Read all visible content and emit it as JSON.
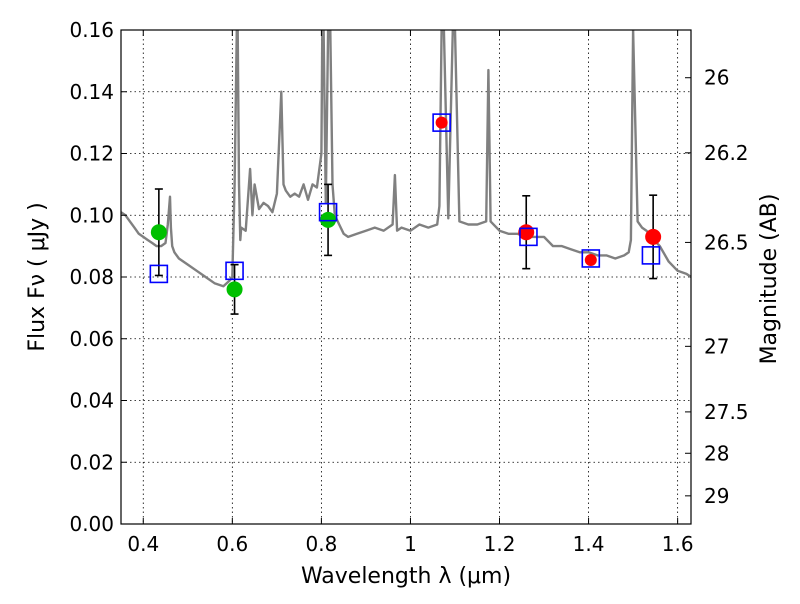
{
  "chart_data": {
    "type": "scatter",
    "xlabel": "Wavelength  λ (μm)",
    "ylabel": "Flux  Fν  ( μJy )",
    "y2label": "Magnitude (AB)",
    "xlim": [
      0.35,
      1.63
    ],
    "ylim": [
      0.0,
      0.16
    ],
    "x_ticks": [
      "0.4",
      "0.6",
      "0.8",
      "1",
      "1.2",
      "1.4",
      "1.6"
    ],
    "y_ticks": [
      "0.00",
      "0.02",
      "0.04",
      "0.06",
      "0.08",
      "0.10",
      "0.12",
      "0.14",
      "0.16"
    ],
    "y2_ticks": [
      "26",
      "26.2",
      "26.5",
      "27",
      "27.5",
      "28",
      "29"
    ],
    "grid": true,
    "colors": {
      "spectrum": "#808080",
      "green_points": "#00c000",
      "red_points": "#ff0000",
      "model_boxes": "#0000ff",
      "error_bars": "#000000"
    },
    "series": [
      {
        "kind": "line",
        "color": "#808080",
        "x": [
          0.35,
          0.36,
          0.37,
          0.38,
          0.39,
          0.4,
          0.41,
          0.42,
          0.43,
          0.44,
          0.45,
          0.455,
          0.46,
          0.462,
          0.465,
          0.47,
          0.48,
          0.5,
          0.52,
          0.54,
          0.56,
          0.58,
          0.595,
          0.6,
          0.605,
          0.61,
          0.612,
          0.615,
          0.618,
          0.62,
          0.63,
          0.64,
          0.645,
          0.65,
          0.66,
          0.67,
          0.68,
          0.69,
          0.7,
          0.71,
          0.715,
          0.72,
          0.73,
          0.74,
          0.75,
          0.76,
          0.77,
          0.78,
          0.79,
          0.8,
          0.802,
          0.805,
          0.81,
          0.815,
          0.82,
          0.825,
          0.83,
          0.84,
          0.85,
          0.86,
          0.88,
          0.9,
          0.92,
          0.94,
          0.96,
          0.965,
          0.97,
          0.98,
          1.0,
          1.02,
          1.04,
          1.06,
          1.065,
          1.07,
          1.075,
          1.085,
          1.095,
          1.1,
          1.11,
          1.13,
          1.15,
          1.17,
          1.175,
          1.18,
          1.2,
          1.22,
          1.24,
          1.26,
          1.28,
          1.3,
          1.32,
          1.34,
          1.36,
          1.38,
          1.4,
          1.42,
          1.44,
          1.46,
          1.48,
          1.49,
          1.495,
          1.5,
          1.51,
          1.52,
          1.53,
          1.54,
          1.56,
          1.58,
          1.6,
          1.62,
          1.63
        ],
        "y": [
          0.101,
          0.1,
          0.098,
          0.096,
          0.094,
          0.093,
          0.092,
          0.091,
          0.09,
          0.09,
          0.091,
          0.097,
          0.106,
          0.096,
          0.09,
          0.088,
          0.086,
          0.084,
          0.082,
          0.08,
          0.078,
          0.077,
          0.079,
          0.08,
          0.11,
          0.16,
          0.16,
          0.11,
          0.092,
          0.096,
          0.095,
          0.115,
          0.1,
          0.11,
          0.102,
          0.104,
          0.103,
          0.101,
          0.107,
          0.14,
          0.11,
          0.108,
          0.106,
          0.107,
          0.106,
          0.11,
          0.105,
          0.11,
          0.109,
          0.12,
          0.16,
          0.16,
          0.104,
          0.16,
          0.16,
          0.11,
          0.1,
          0.097,
          0.094,
          0.093,
          0.094,
          0.095,
          0.096,
          0.095,
          0.097,
          0.113,
          0.095,
          0.096,
          0.095,
          0.097,
          0.096,
          0.097,
          0.103,
          0.16,
          0.16,
          0.099,
          0.16,
          0.16,
          0.098,
          0.097,
          0.097,
          0.098,
          0.147,
          0.098,
          0.095,
          0.094,
          0.094,
          0.093,
          0.093,
          0.093,
          0.09,
          0.09,
          0.089,
          0.088,
          0.088,
          0.087,
          0.087,
          0.086,
          0.087,
          0.088,
          0.092,
          0.16,
          0.098,
          0.096,
          0.095,
          0.093,
          0.09,
          0.085,
          0.082,
          0.081,
          0.08
        ]
      },
      {
        "kind": "points-with-errorbars",
        "color": "#00c000",
        "x": [
          0.435,
          0.605,
          0.815
        ],
        "y": [
          0.0945,
          0.076,
          0.0985
        ],
        "yerr": [
          0.014,
          0.008,
          0.0115
        ]
      },
      {
        "kind": "points-with-errorbars",
        "color": "#ff0000",
        "x": [
          1.26,
          1.545
        ],
        "y": [
          0.0945,
          0.093
        ],
        "yerr": [
          0.0118,
          0.0135
        ]
      },
      {
        "kind": "points",
        "color": "#ff0000",
        "x": [
          1.07,
          1.405
        ],
        "y": [
          0.13,
          0.0855
        ]
      },
      {
        "kind": "open-squares",
        "color": "#0000ff",
        "x": [
          0.435,
          0.605,
          0.815,
          1.07,
          1.265,
          1.405,
          1.54
        ],
        "y": [
          0.081,
          0.082,
          0.101,
          0.13,
          0.093,
          0.086,
          0.087
        ]
      }
    ]
  }
}
